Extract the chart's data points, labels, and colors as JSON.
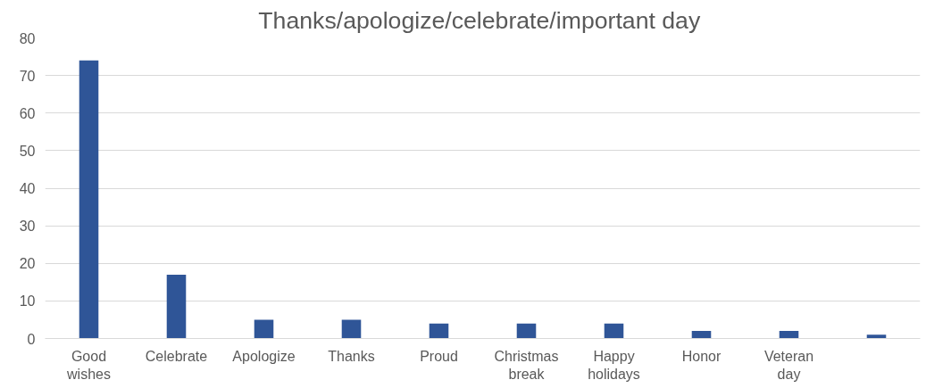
{
  "chart_data": {
    "type": "bar",
    "title": "Thanks/apologize/celebrate/important  day",
    "categories": [
      "Good wishes",
      "Celebrate",
      "Apologize",
      "Thanks",
      "Proud",
      "Christmas break",
      "Happy holidays",
      "Honor",
      "Veteran day",
      null
    ],
    "values": [
      74,
      17,
      5,
      5,
      4,
      4,
      4,
      2,
      2,
      1
    ],
    "color": "#2f5597",
    "ylim": [
      0,
      80
    ],
    "yticks": [
      0,
      10,
      20,
      30,
      40,
      50,
      60,
      70,
      80
    ],
    "grid": "y"
  }
}
